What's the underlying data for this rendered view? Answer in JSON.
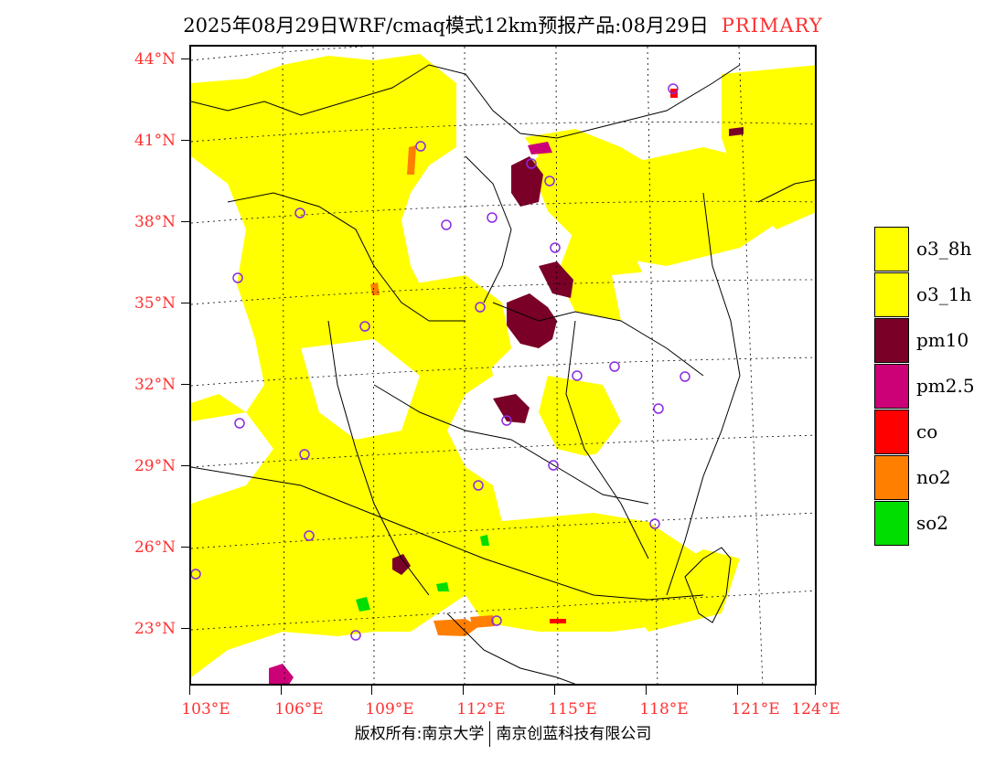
{
  "header": {
    "title": "2025年08月29日WRF/cmaq模式12km预报产品:08月29日",
    "mode": "PRIMARY"
  },
  "axes": {
    "lat_labels": [
      "44°N",
      "41°N",
      "38°N",
      "35°N",
      "32°N",
      "29°N",
      "26°N",
      "23°N"
    ],
    "lon_labels": [
      "103°E",
      "106°E",
      "109°E",
      "112°E",
      "115°E",
      "118°E",
      "121°E",
      "124°E"
    ]
  },
  "legend": {
    "items": [
      {
        "label": "o3_8h",
        "color": "#ffff00"
      },
      {
        "label": "o3_1h",
        "color": "#ffff00"
      },
      {
        "label": "pm10",
        "color": "#7a0028"
      },
      {
        "label": "pm2.5",
        "color": "#cc0077"
      },
      {
        "label": "co",
        "color": "#ff0000"
      },
      {
        "label": "no2",
        "color": "#ff7f00"
      },
      {
        "label": "so2",
        "color": "#00dd00"
      }
    ]
  },
  "footer": {
    "left": "版权所有:南京大学",
    "right": "南京创蓝科技有限公司"
  }
}
